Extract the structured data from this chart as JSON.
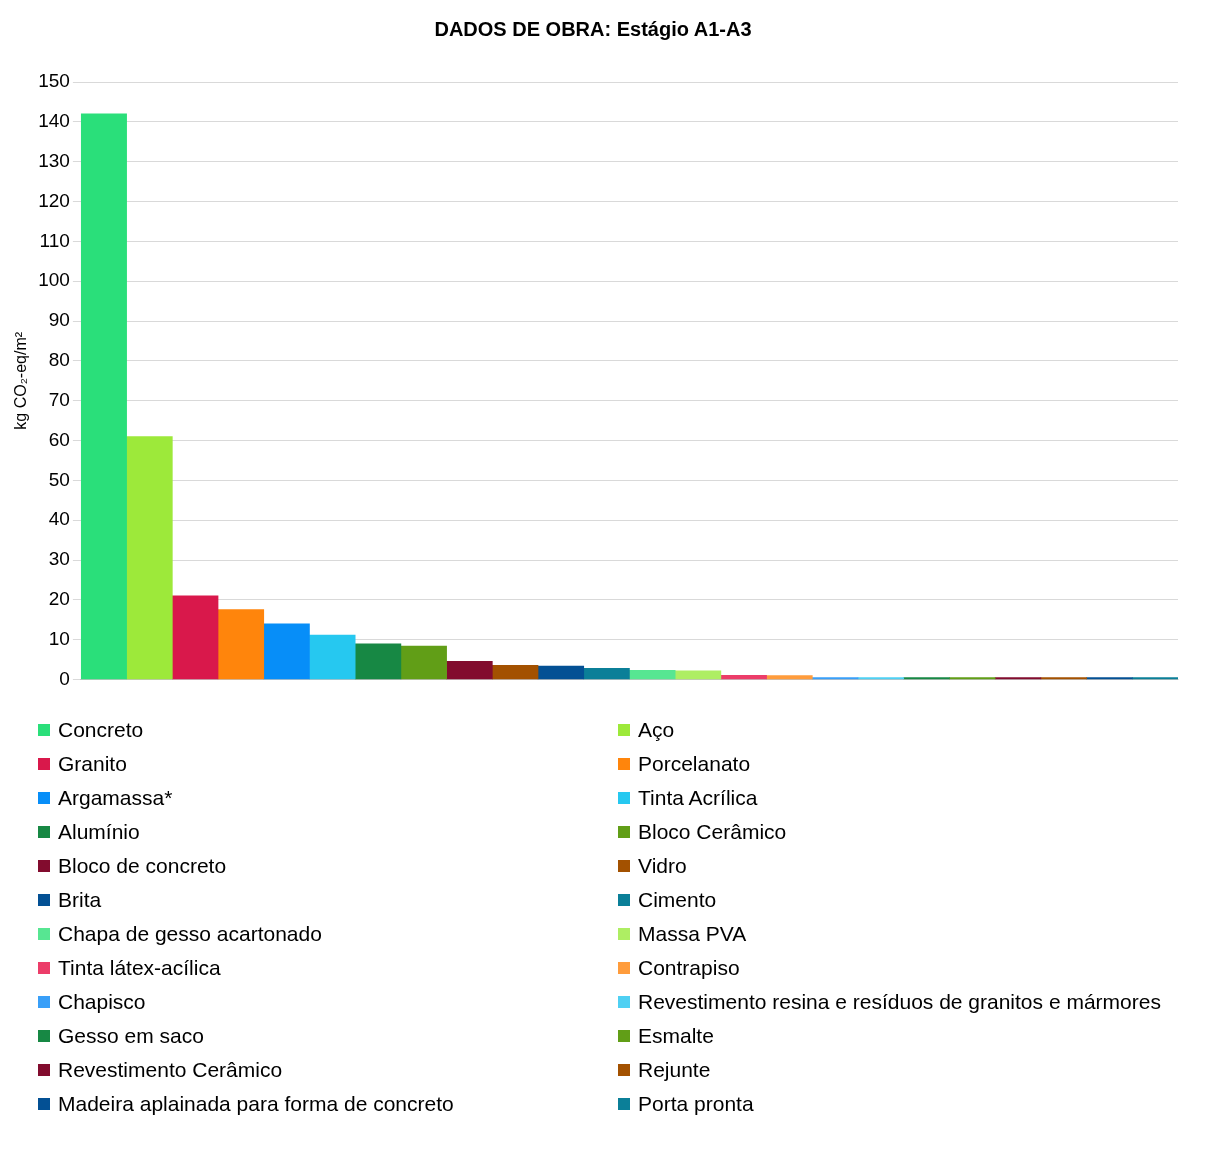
{
  "chart_data": {
    "type": "bar",
    "title": "DADOS DE OBRA: Estágio A1-A3",
    "ylabel": "kg CO₂-eq/m²",
    "categories": [
      null,
      null,
      null,
      null,
      null,
      null,
      null,
      null,
      null,
      null,
      null,
      null,
      null,
      null,
      null,
      null,
      null,
      null,
      null,
      null,
      null,
      null,
      null,
      null
    ],
    "ylim": [
      0,
      150
    ],
    "yticks": [
      0,
      10,
      20,
      30,
      40,
      50,
      60,
      70,
      80,
      90,
      100,
      110,
      120,
      130,
      140,
      150
    ],
    "grid": "y",
    "legend": "bottom",
    "series": [
      {
        "name": "Concreto",
        "color": "#2adf7a",
        "values": [
          142,
          null,
          null,
          null,
          null,
          null,
          null,
          null,
          null,
          null,
          null,
          null,
          null,
          null,
          null,
          null,
          null,
          null,
          null,
          null,
          null,
          null,
          null,
          null
        ]
      },
      {
        "name": "Aço",
        "color": "#9de93a",
        "values": [
          null,
          61,
          null,
          null,
          null,
          null,
          null,
          null,
          null,
          null,
          null,
          null,
          null,
          null,
          null,
          null,
          null,
          null,
          null,
          null,
          null,
          null,
          null,
          null
        ]
      },
      {
        "name": "Granito",
        "color": "#d9184b",
        "values": [
          null,
          null,
          21,
          null,
          null,
          null,
          null,
          null,
          null,
          null,
          null,
          null,
          null,
          null,
          null,
          null,
          null,
          null,
          null,
          null,
          null,
          null,
          null,
          null
        ]
      },
      {
        "name": "Porcelanato",
        "color": "#ff850c",
        "values": [
          null,
          null,
          null,
          17.6,
          null,
          null,
          null,
          null,
          null,
          null,
          null,
          null,
          null,
          null,
          null,
          null,
          null,
          null,
          null,
          null,
          null,
          null,
          null,
          null
        ]
      },
      {
        "name": "Argamassa*",
        "color": "#078ef8",
        "values": [
          null,
          null,
          null,
          null,
          14,
          null,
          null,
          null,
          null,
          null,
          null,
          null,
          null,
          null,
          null,
          null,
          null,
          null,
          null,
          null,
          null,
          null,
          null,
          null
        ]
      },
      {
        "name": "Tinta Acrílica",
        "color": "#26c8f0",
        "values": [
          null,
          null,
          null,
          null,
          null,
          11.2,
          null,
          null,
          null,
          null,
          null,
          null,
          null,
          null,
          null,
          null,
          null,
          null,
          null,
          null,
          null,
          null,
          null,
          null
        ]
      },
      {
        "name": "Alumínio",
        "color": "#178844",
        "values": [
          null,
          null,
          null,
          null,
          null,
          null,
          9,
          null,
          null,
          null,
          null,
          null,
          null,
          null,
          null,
          null,
          null,
          null,
          null,
          null,
          null,
          null,
          null,
          null
        ]
      },
      {
        "name": "Bloco Cerâmico",
        "color": "#619e17",
        "values": [
          null,
          null,
          null,
          null,
          null,
          null,
          null,
          8.4,
          null,
          null,
          null,
          null,
          null,
          null,
          null,
          null,
          null,
          null,
          null,
          null,
          null,
          null,
          null,
          null
        ]
      },
      {
        "name": "Bloco de concreto",
        "color": "#820c2e",
        "values": [
          null,
          null,
          null,
          null,
          null,
          null,
          null,
          null,
          4.6,
          null,
          null,
          null,
          null,
          null,
          null,
          null,
          null,
          null,
          null,
          null,
          null,
          null,
          null,
          null
        ]
      },
      {
        "name": "Vidro",
        "color": "#a35100",
        "values": [
          null,
          null,
          null,
          null,
          null,
          null,
          null,
          null,
          null,
          3.6,
          null,
          null,
          null,
          null,
          null,
          null,
          null,
          null,
          null,
          null,
          null,
          null,
          null,
          null
        ]
      },
      {
        "name": "Brita",
        "color": "#035094",
        "values": [
          null,
          null,
          null,
          null,
          null,
          null,
          null,
          null,
          null,
          null,
          3.4,
          null,
          null,
          null,
          null,
          null,
          null,
          null,
          null,
          null,
          null,
          null,
          null,
          null
        ]
      },
      {
        "name": "Cimento",
        "color": "#0b7f98",
        "values": [
          null,
          null,
          null,
          null,
          null,
          null,
          null,
          null,
          null,
          null,
          null,
          2.8,
          null,
          null,
          null,
          null,
          null,
          null,
          null,
          null,
          null,
          null,
          null,
          null
        ]
      },
      {
        "name": "Chapa de gesso acartonado",
        "color": "#57e692",
        "values": [
          null,
          null,
          null,
          null,
          null,
          null,
          null,
          null,
          null,
          null,
          null,
          null,
          2.3,
          null,
          null,
          null,
          null,
          null,
          null,
          null,
          null,
          null,
          null,
          null
        ]
      },
      {
        "name": "Massa PVA",
        "color": "#aeee63",
        "values": [
          null,
          null,
          null,
          null,
          null,
          null,
          null,
          null,
          null,
          null,
          null,
          null,
          null,
          2.2,
          null,
          null,
          null,
          null,
          null,
          null,
          null,
          null,
          null,
          null
        ]
      },
      {
        "name": "Tinta látex-acílica",
        "color": "#ec3d69",
        "values": [
          null,
          null,
          null,
          null,
          null,
          null,
          null,
          null,
          null,
          null,
          null,
          null,
          null,
          null,
          1.1,
          null,
          null,
          null,
          null,
          null,
          null,
          null,
          null,
          null
        ]
      },
      {
        "name": "Contrapiso",
        "color": "#ff9c3c",
        "values": [
          null,
          null,
          null,
          null,
          null,
          null,
          null,
          null,
          null,
          null,
          null,
          null,
          null,
          null,
          null,
          1,
          null,
          null,
          null,
          null,
          null,
          null,
          null,
          null
        ]
      },
      {
        "name": "Chapisco",
        "color": "#399ff8",
        "values": [
          null,
          null,
          null,
          null,
          null,
          null,
          null,
          null,
          null,
          null,
          null,
          null,
          null,
          null,
          null,
          null,
          0.3,
          null,
          null,
          null,
          null,
          null,
          null,
          null
        ]
      },
      {
        "name": "Revestimento resina e resíduos de granitos e mármores",
        "color": "#4fd0f3",
        "values": [
          null,
          null,
          null,
          null,
          null,
          null,
          null,
          null,
          null,
          null,
          null,
          null,
          null,
          null,
          null,
          null,
          null,
          0.2,
          null,
          null,
          null,
          null,
          null,
          null
        ]
      },
      {
        "name": "Gesso em saco",
        "color": "#178844",
        "values": [
          null,
          null,
          null,
          null,
          null,
          null,
          null,
          null,
          null,
          null,
          null,
          null,
          null,
          null,
          null,
          null,
          null,
          null,
          0.1,
          null,
          null,
          null,
          null,
          null
        ]
      },
      {
        "name": "Esmalte",
        "color": "#619e17",
        "values": [
          null,
          null,
          null,
          null,
          null,
          null,
          null,
          null,
          null,
          null,
          null,
          null,
          null,
          null,
          null,
          null,
          null,
          null,
          null,
          0.1,
          null,
          null,
          null,
          null
        ]
      },
      {
        "name": "Revestimento Cerâmico",
        "color": "#820c2e",
        "values": [
          null,
          null,
          null,
          null,
          null,
          null,
          null,
          null,
          null,
          null,
          null,
          null,
          null,
          null,
          null,
          null,
          null,
          null,
          null,
          null,
          0.1,
          null,
          null,
          null
        ]
      },
      {
        "name": "Rejunte",
        "color": "#a35100",
        "values": [
          null,
          null,
          null,
          null,
          null,
          null,
          null,
          null,
          null,
          null,
          null,
          null,
          null,
          null,
          null,
          null,
          null,
          null,
          null,
          null,
          null,
          0.1,
          null,
          null
        ]
      },
      {
        "name": "Madeira aplainada para forma de concreto",
        "color": "#035094",
        "values": [
          null,
          null,
          null,
          null,
          null,
          null,
          null,
          null,
          null,
          null,
          null,
          null,
          null,
          null,
          null,
          null,
          null,
          null,
          null,
          null,
          null,
          null,
          0.1,
          null
        ]
      },
      {
        "name": "Porta pronta",
        "color": "#0b7f98",
        "values": [
          null,
          null,
          null,
          null,
          null,
          null,
          null,
          null,
          null,
          null,
          null,
          null,
          null,
          null,
          null,
          null,
          null,
          null,
          null,
          null,
          null,
          null,
          null,
          0.1
        ]
      }
    ]
  }
}
